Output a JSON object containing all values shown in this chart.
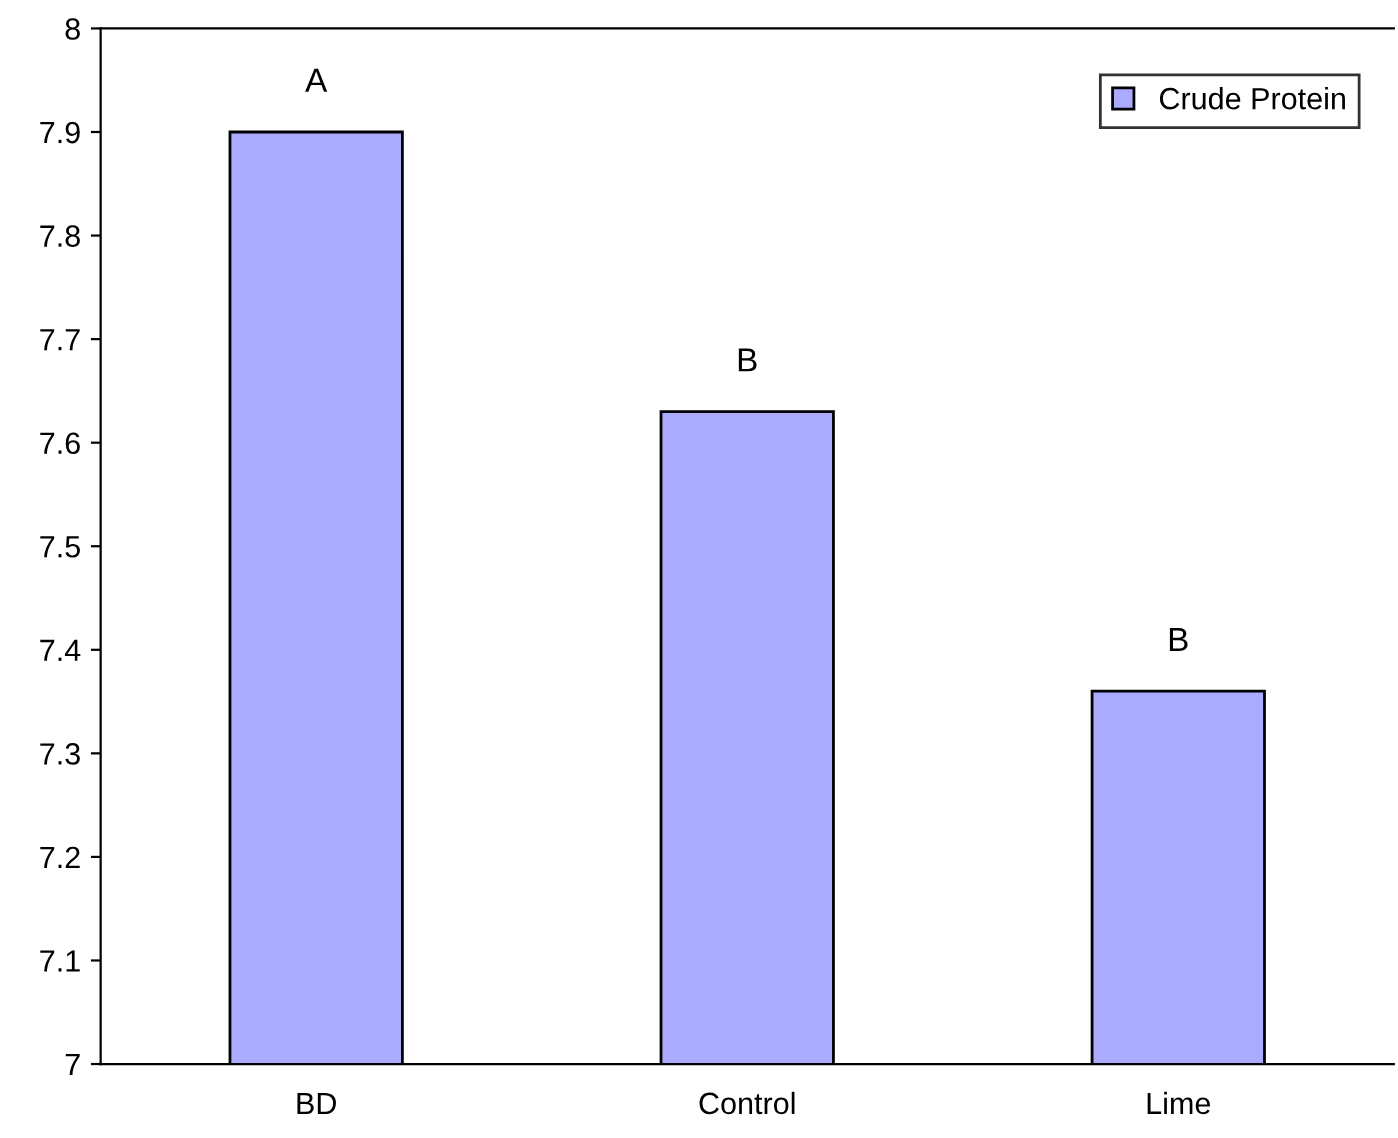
{
  "chart_data": {
    "type": "bar",
    "categories": [
      "BD",
      "Control",
      "Lime"
    ],
    "series": [
      {
        "name": "Crude Protein",
        "color": "#aaaaff",
        "values": [
          7.9,
          7.63,
          7.36
        ]
      }
    ],
    "ylim": [
      7,
      8
    ],
    "yticks": [
      7,
      7.1,
      7.2,
      7.3,
      7.4,
      7.5,
      7.6,
      7.7,
      7.8,
      7.9,
      8
    ],
    "annotations": [
      {
        "text": "A",
        "x": "BD",
        "y": 7.9
      },
      {
        "text": "B",
        "x": "Control",
        "y": 7.63
      },
      {
        "text": "B",
        "x": "Lime",
        "y": 7.36
      }
    ],
    "grid": false,
    "legend": "top right"
  }
}
